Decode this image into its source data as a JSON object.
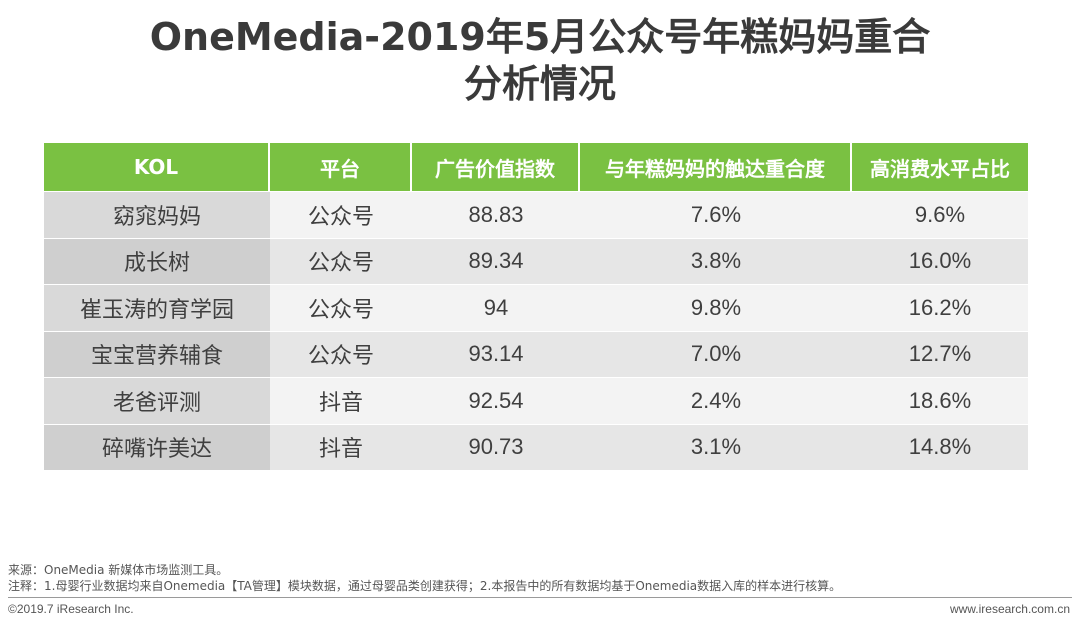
{
  "title": {
    "line1": "OneMedia-2019年5月公众号年糕妈妈重合",
    "line2": "分析情况"
  },
  "table": {
    "headers": [
      "KOL",
      "平台",
      "广告价值指数",
      "与年糕妈妈的触达重合度",
      "高消费水平占比"
    ],
    "rows": [
      [
        "窈窕妈妈",
        "公众号",
        "88.83",
        "7.6%",
        "9.6%"
      ],
      [
        "成长树",
        "公众号",
        "89.34",
        "3.8%",
        "16.0%"
      ],
      [
        "崔玉涛的育学园",
        "公众号",
        "94",
        "9.8%",
        "16.2%"
      ],
      [
        "宝宝营养辅食",
        "公众号",
        "93.14",
        "7.0%",
        "12.7%"
      ],
      [
        "老爸评测",
        "抖音",
        "92.54",
        "2.4%",
        "18.6%"
      ],
      [
        "碎嘴许美达",
        "抖音",
        "90.73",
        "3.1%",
        "14.8%"
      ]
    ]
  },
  "notes": {
    "source": "来源：OneMedia 新媒体市场监测工具。",
    "note": "注释：1.母婴行业数据均来自Onemedia【TA管理】模块数据，通过母婴品类创建获得；2.本报告中的所有数据均基于Onemedia数据入库的样本进行核算。"
  },
  "footer": {
    "copyright": "©2019.7 iResearch Inc.",
    "website": "www.iresearch.com.cn"
  },
  "colors": {
    "header_bg": "#7ac142",
    "row_odd": "#f3f3f3",
    "row_even": "#e6e6e6",
    "kol_col": "#d9d9d9"
  }
}
